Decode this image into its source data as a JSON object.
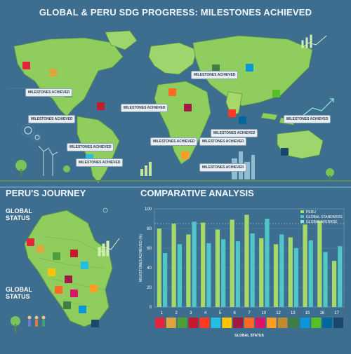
{
  "title": "GLOBAL & PERU SDG PROGRESS: MILESTONES ACHIEVED",
  "map": {
    "labels": [
      "MILESTONES ACHIEVED",
      "MILESTONES ACHIEVED",
      "MILESTONES ACHIEVED",
      "MILESTONES ACHIEVED",
      "MILESTONES ACHIEVED",
      "MILESTONES ACHIEVED",
      "MILESTONES ACHIEVED",
      "MILESTONES ACHIEVED",
      "MILESTONES ACHIEVED",
      "MILESTONES ACHIEVED",
      "MILESTONES ACHIEVED"
    ]
  },
  "peru": {
    "title": "PERU'S JOURNEY",
    "status_top": "GLOBAL STATUS",
    "status_bottom": "GLOBAL STATUS"
  },
  "analysis": {
    "title": "COMPARATIVE ANALYSIS"
  },
  "colors": {
    "peru": "#a6d86a",
    "global_standards": "#4fc7c9",
    "global_average": "#8fe4d2"
  },
  "chart_data": {
    "type": "bar",
    "categories": [
      "1",
      "2",
      "3",
      "4",
      "5",
      "6",
      "7",
      "10",
      "12",
      "13",
      "15",
      "16",
      "17"
    ],
    "series": [
      {
        "name": "PERU",
        "values": [
          80,
          85,
          74,
          86,
          79,
          89,
          94,
          70,
          64,
          71,
          84,
          88,
          47
        ]
      },
      {
        "name": "GLOBAL STANDARDS",
        "values": [
          55,
          64,
          87,
          65,
          69,
          67,
          75,
          90,
          74,
          60,
          68,
          56,
          62
        ]
      }
    ],
    "legend": [
      "PERU",
      "GLOBAL STANDARDS",
      "GLOBAL AVERAGE"
    ],
    "ylabel": "MILESTONES ACHIEVED (%)",
    "xlabel": "GLOBAL STATUS",
    "ylim": [
      0,
      100
    ],
    "yticks": [
      "0",
      "20",
      "40",
      "60",
      "80",
      "100"
    ],
    "reference_line": 85,
    "legend_position": "top-right"
  }
}
